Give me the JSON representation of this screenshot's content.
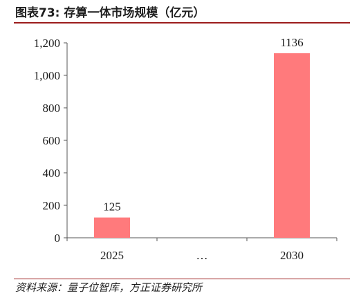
{
  "header": {
    "title": "图表73: 存算一体市场规模（亿元）"
  },
  "footer": {
    "source": "资料来源：量子位智库，方正证券研究所"
  },
  "colors": {
    "bar": "#ff7a7c",
    "title_rule": "#9b1b1b",
    "axis": "#555555"
  },
  "chart_data": {
    "type": "bar",
    "title": "存算一体市场规模（亿元）",
    "xlabel": "",
    "ylabel": "",
    "categories": [
      "2025",
      "…",
      "2030"
    ],
    "values": [
      125,
      null,
      1136
    ],
    "data_labels": [
      "125",
      "",
      "1136"
    ],
    "ylim": [
      0,
      1200
    ],
    "yticks": [
      0,
      200,
      400,
      600,
      800,
      1000,
      1200
    ],
    "ytick_labels": [
      "0",
      "200",
      "400",
      "600",
      "800",
      "1,000",
      "1,200"
    ],
    "grid": false,
    "legend": "none"
  }
}
